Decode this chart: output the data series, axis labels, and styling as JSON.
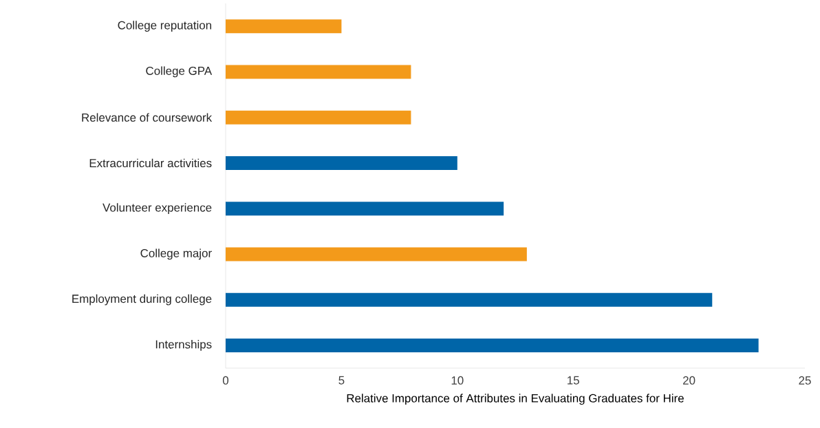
{
  "chart_data": {
    "type": "bar",
    "orientation": "horizontal",
    "xlabel": "Relative Importance of Attributes in Evaluating Graduates for Hire",
    "categories": [
      "College reputation",
      "College GPA",
      "Relevance of coursework",
      "Extracurricular activities",
      "Volunteer experience",
      "College major",
      "Employment during college",
      "Internships"
    ],
    "values": [
      5,
      8,
      8,
      10,
      12,
      13,
      21,
      23
    ],
    "colors": [
      "#f39a1a",
      "#f39a1a",
      "#f39a1a",
      "#0065a8",
      "#0065a8",
      "#f39a1a",
      "#0065a8",
      "#0065a8"
    ],
    "xlim": [
      0,
      25
    ],
    "xticks": [
      0,
      5,
      10,
      15,
      20,
      25
    ],
    "grid": false
  }
}
